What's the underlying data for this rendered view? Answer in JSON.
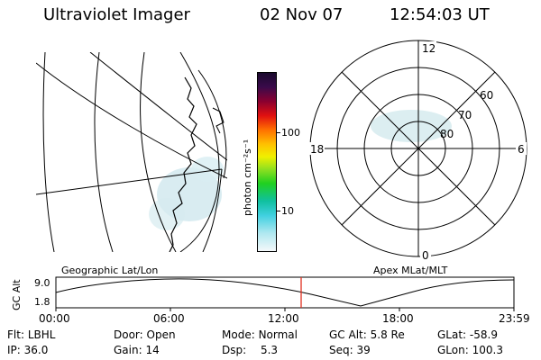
{
  "header": {
    "title": "Ultraviolet Imager",
    "date": "02 Nov 07",
    "time": "12:54:03 UT"
  },
  "colorbar": {
    "unit_label": "photon cm⁻²s⁻¹",
    "ticks": [
      "100",
      "10"
    ]
  },
  "polar_plot": {
    "mlt_labels": {
      "top": "12",
      "bottom": "0",
      "left": "18",
      "right": "6"
    },
    "lat_labels": [
      "60",
      "70",
      "80"
    ]
  },
  "panel_labels": {
    "left": "Geographic Lat/Lon",
    "right": "Apex MLat/MLT"
  },
  "orbit_plot": {
    "ylabel": "GC Alt",
    "yticks": [
      "9.0",
      "1.8"
    ],
    "xticks": [
      "00:00",
      "06:00",
      "12:00",
      "18:00",
      "23:59"
    ]
  },
  "info": {
    "row1": [
      {
        "label": "Flt:",
        "value": "LBHL"
      },
      {
        "label": "Door:",
        "value": "Open"
      },
      {
        "label": "Mode:",
        "value": "Normal"
      },
      {
        "label": "GC Alt:",
        "value": "5.8 Re"
      },
      {
        "label": "GLat:",
        "value": "-58.9"
      }
    ],
    "row2": [
      {
        "label": "IP:",
        "value": "36.0"
      },
      {
        "label": "Gain:",
        "value": "14"
      },
      {
        "label": "Dsp:",
        "value": "5.3"
      },
      {
        "label": "Seq:",
        "value": "39"
      },
      {
        "label": "GLon:",
        "value": "100.3"
      }
    ]
  },
  "colors": {
    "marker": "#e03020",
    "aurora": "#c8e6ee"
  }
}
